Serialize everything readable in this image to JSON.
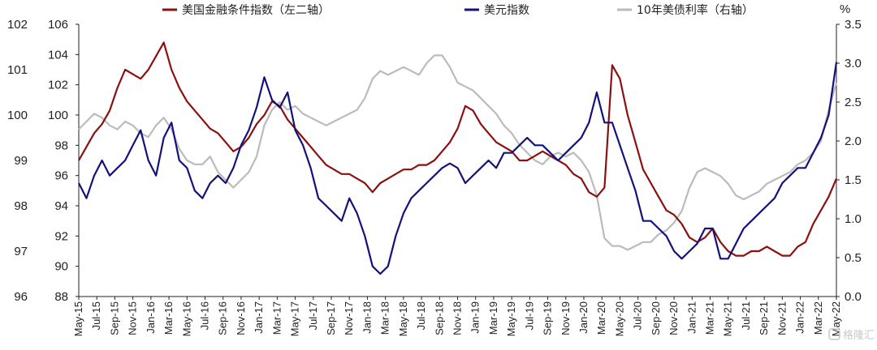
{
  "chart_data": {
    "type": "line",
    "legend": [
      {
        "label": "美国金融条件指数（左二轴）",
        "color": "#8b1010",
        "axis": "left2"
      },
      {
        "label": "美元指数",
        "color": "#12127a",
        "axis": "left1"
      },
      {
        "label": "10年美债利率（右轴）",
        "color": "#bbbbbb",
        "axis": "right"
      }
    ],
    "legend_position": "top",
    "right_axis_unit": "%",
    "left2_axis": {
      "ticks": [
        "102",
        "101",
        "100",
        "99",
        "98",
        "97",
        "96"
      ],
      "range": [
        96,
        102
      ]
    },
    "left1_axis": {
      "ticks": [
        "106",
        "104",
        "102",
        "100",
        "98",
        "96",
        "94",
        "92",
        "90",
        "88"
      ],
      "range": [
        88,
        106
      ]
    },
    "right_axis": {
      "ticks": [
        "3.5",
        "3.0",
        "2.5",
        "2.0",
        "1.5",
        "1.0",
        "0.5",
        "0.0"
      ],
      "range": [
        0.0,
        3.5
      ]
    },
    "x_labels": [
      "May-15",
      "Jul-15",
      "Sep-15",
      "Nov-15",
      "Jan-16",
      "Mar-16",
      "May-16",
      "Jul-16",
      "Sep-16",
      "Nov-16",
      "Jan-17",
      "Mar-17",
      "May-17",
      "Jul-17",
      "Sep-17",
      "Nov-17",
      "Jan-18",
      "Mar-18",
      "May-18",
      "Jul-18",
      "Sep-18",
      "Nov-18",
      "Jan-19",
      "Mar-19",
      "May-19",
      "Jul-19",
      "Sep-19",
      "Nov-19",
      "Jan-20",
      "Mar-20",
      "May-20",
      "Jul-20",
      "Sep-20",
      "Nov-20",
      "Jan-21",
      "Mar-21",
      "May-21",
      "Jul-21",
      "Sep-21",
      "Nov-21",
      "Jan-22",
      "Mar-22",
      "May-22"
    ],
    "series": [
      {
        "name": "美国金融条件指数（左二轴）",
        "axis": "left2",
        "values": [
          99.0,
          99.3,
          99.6,
          99.8,
          100.1,
          100.6,
          101.0,
          100.9,
          100.8,
          101.0,
          101.3,
          101.6,
          101.0,
          100.6,
          100.3,
          100.1,
          99.9,
          99.7,
          99.6,
          99.4,
          99.2,
          99.3,
          99.5,
          99.8,
          100.0,
          100.3,
          100.2,
          99.9,
          99.7,
          99.5,
          99.3,
          99.1,
          98.9,
          98.8,
          98.7,
          98.7,
          98.6,
          98.5,
          98.3,
          98.5,
          98.6,
          98.7,
          98.8,
          98.8,
          98.9,
          98.9,
          99.0,
          99.2,
          99.4,
          99.7,
          100.2,
          100.1,
          99.8,
          99.6,
          99.4,
          99.3,
          99.2,
          99.0,
          99.0,
          99.1,
          99.2,
          99.1,
          99.0,
          98.9,
          98.7,
          98.6,
          98.3,
          98.2,
          98.4,
          101.1,
          100.8,
          100.0,
          99.4,
          98.8,
          98.5,
          98.2,
          97.9,
          97.8,
          97.6,
          97.3,
          97.2,
          97.3,
          97.5,
          97.2,
          97.0,
          96.9,
          96.9,
          97.0,
          97.0,
          97.1,
          97.0,
          96.9,
          96.9,
          97.1,
          97.2,
          97.6,
          97.9,
          98.2,
          98.6
        ],
        "labels": []
      },
      {
        "name": "美元指数",
        "axis": "left1",
        "values": [
          95.5,
          94.5,
          96.0,
          97.0,
          96.0,
          96.5,
          97.0,
          98.0,
          99.0,
          97.0,
          96.0,
          98.5,
          99.5,
          97.0,
          96.5,
          95.0,
          94.5,
          95.5,
          96.0,
          95.5,
          96.5,
          98.0,
          99.0,
          100.5,
          102.5,
          101.0,
          100.5,
          101.5,
          99.0,
          98.0,
          96.5,
          94.5,
          94.0,
          93.5,
          93.0,
          94.5,
          93.5,
          92.0,
          90.0,
          89.5,
          90.0,
          92.0,
          93.5,
          94.5,
          95.0,
          95.5,
          96.0,
          96.5,
          96.8,
          96.5,
          95.5,
          96.0,
          96.5,
          97.0,
          96.5,
          97.5,
          97.5,
          98.0,
          98.5,
          98.0,
          98.0,
          97.5,
          97.0,
          97.5,
          98.0,
          98.5,
          99.5,
          101.5,
          99.5,
          99.5,
          98.0,
          96.5,
          95.0,
          93.0,
          93.0,
          92.5,
          92.0,
          91.0,
          90.5,
          91.0,
          91.5,
          92.5,
          92.5,
          90.5,
          90.5,
          91.5,
          92.5,
          93.0,
          93.5,
          94.0,
          94.5,
          95.5,
          96.0,
          96.5,
          96.5,
          97.5,
          98.5,
          100.0,
          103.5
        ],
        "labels": []
      },
      {
        "name": "10年美债利率（右轴）",
        "axis": "right",
        "values": [
          2.15,
          2.25,
          2.35,
          2.3,
          2.2,
          2.15,
          2.25,
          2.2,
          2.1,
          2.05,
          2.2,
          2.3,
          2.15,
          1.9,
          1.75,
          1.7,
          1.7,
          1.8,
          1.6,
          1.5,
          1.4,
          1.5,
          1.6,
          1.8,
          2.2,
          2.4,
          2.5,
          2.4,
          2.45,
          2.35,
          2.3,
          2.25,
          2.2,
          2.25,
          2.3,
          2.35,
          2.4,
          2.55,
          2.8,
          2.9,
          2.85,
          2.9,
          2.95,
          2.9,
          2.85,
          3.0,
          3.1,
          3.1,
          2.95,
          2.75,
          2.7,
          2.65,
          2.55,
          2.45,
          2.35,
          2.2,
          2.1,
          1.95,
          1.85,
          1.75,
          1.7,
          1.8,
          1.85,
          1.8,
          1.85,
          1.75,
          1.6,
          1.3,
          0.75,
          0.65,
          0.65,
          0.6,
          0.65,
          0.7,
          0.7,
          0.8,
          0.85,
          0.95,
          1.1,
          1.4,
          1.6,
          1.65,
          1.6,
          1.55,
          1.45,
          1.3,
          1.25,
          1.3,
          1.35,
          1.45,
          1.5,
          1.55,
          1.6,
          1.7,
          1.75,
          1.85,
          2.0,
          2.4,
          2.75
        ],
        "labels": []
      }
    ]
  },
  "watermark": "格隆汇"
}
